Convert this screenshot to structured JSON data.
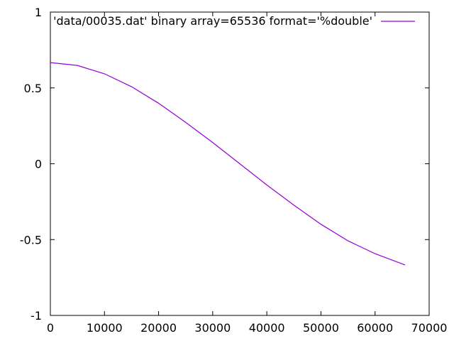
{
  "chart_data": {
    "type": "line",
    "title": "",
    "xlabel": "",
    "ylabel": "",
    "xlim": [
      0,
      70000
    ],
    "ylim": [
      -1,
      1
    ],
    "x_ticks": [
      0,
      10000,
      20000,
      30000,
      40000,
      50000,
      60000,
      70000
    ],
    "x_tick_labels": [
      "0",
      "10000",
      "20000",
      "30000",
      "40000",
      "50000",
      "60000",
      "70000"
    ],
    "y_ticks": [
      -1,
      -0.5,
      0,
      0.5,
      1
    ],
    "y_tick_labels": [
      "-1",
      "-0.5",
      "0",
      "0.5",
      "1"
    ],
    "grid": false,
    "legend_position": "top-right",
    "series": [
      {
        "name": "'data/00035.dat' binary array=65536 format='%double'",
        "color": "#9400d3",
        "x": [
          0,
          5000,
          10000,
          15000,
          20000,
          25000,
          30000,
          35000,
          40000,
          45000,
          50000,
          55000,
          60000,
          65535
        ],
        "y": [
          0.667,
          0.648,
          0.593,
          0.508,
          0.399,
          0.273,
          0.14,
          0.0,
          -0.14,
          -0.273,
          -0.399,
          -0.508,
          -0.593,
          -0.667
        ]
      }
    ]
  }
}
